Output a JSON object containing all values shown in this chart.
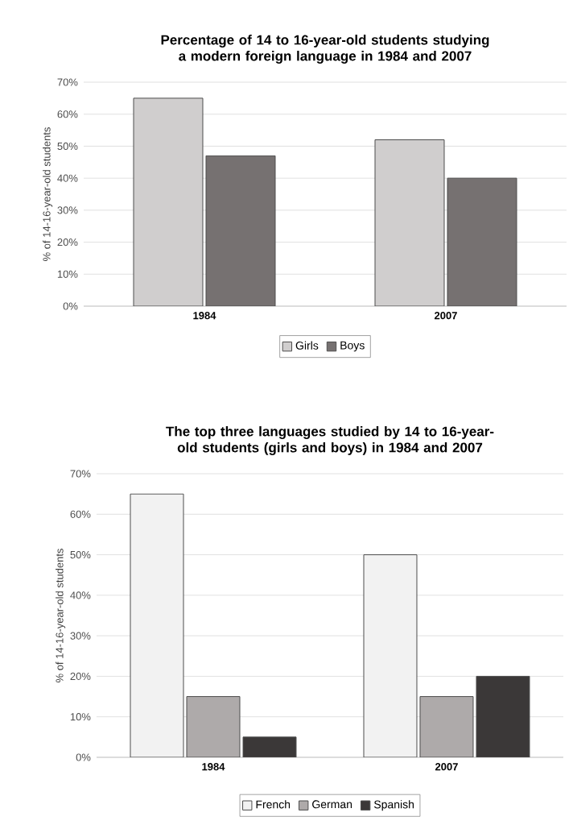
{
  "chart_data": [
    {
      "type": "bar",
      "title": "Percentage of 14 to 16-year-old students studying a modern foreign language in 1984 and 2007",
      "ylabel": "% of 14-16-year-old students",
      "categories": [
        "1984",
        "2007"
      ],
      "series": [
        {
          "name": "Girls",
          "color": "#d0cece",
          "values": [
            65,
            52
          ]
        },
        {
          "name": "Boys",
          "color": "#767171",
          "values": [
            47,
            40
          ]
        }
      ],
      "ylim": [
        0,
        70
      ],
      "yticks": [
        {
          "value": 0,
          "label": "0%"
        },
        {
          "value": 10,
          "label": "10%"
        },
        {
          "value": 20,
          "label": "20%"
        },
        {
          "value": 30,
          "label": "30%"
        },
        {
          "value": 40,
          "label": "40%"
        },
        {
          "value": 50,
          "label": "50%"
        },
        {
          "value": 60,
          "label": "60%"
        },
        {
          "value": 70,
          "label": "70%"
        }
      ],
      "grid": "y",
      "legend": "bottom"
    },
    {
      "type": "bar",
      "title": "The top three languages studied by 14 to 16-year-old students (girls and boys) in 1984 and 2007",
      "ylabel": "% of 14-16-year-old students",
      "categories": [
        "1984",
        "2007"
      ],
      "series": [
        {
          "name": "French",
          "color": "#f2f2f2",
          "values": [
            65,
            50
          ]
        },
        {
          "name": "German",
          "color": "#aeaaaa",
          "values": [
            15,
            15
          ]
        },
        {
          "name": "Spanish",
          "color": "#3b3838",
          "values": [
            5,
            20
          ]
        }
      ],
      "ylim": [
        0,
        70
      ],
      "yticks": [
        {
          "value": 0,
          "label": "0%"
        },
        {
          "value": 10,
          "label": "10%"
        },
        {
          "value": 20,
          "label": "20%"
        },
        {
          "value": 30,
          "label": "30%"
        },
        {
          "value": 40,
          "label": "40%"
        },
        {
          "value": 50,
          "label": "50%"
        },
        {
          "value": 60,
          "label": "60%"
        },
        {
          "value": 70,
          "label": "70%"
        }
      ],
      "grid": "y",
      "legend": "bottom"
    }
  ]
}
